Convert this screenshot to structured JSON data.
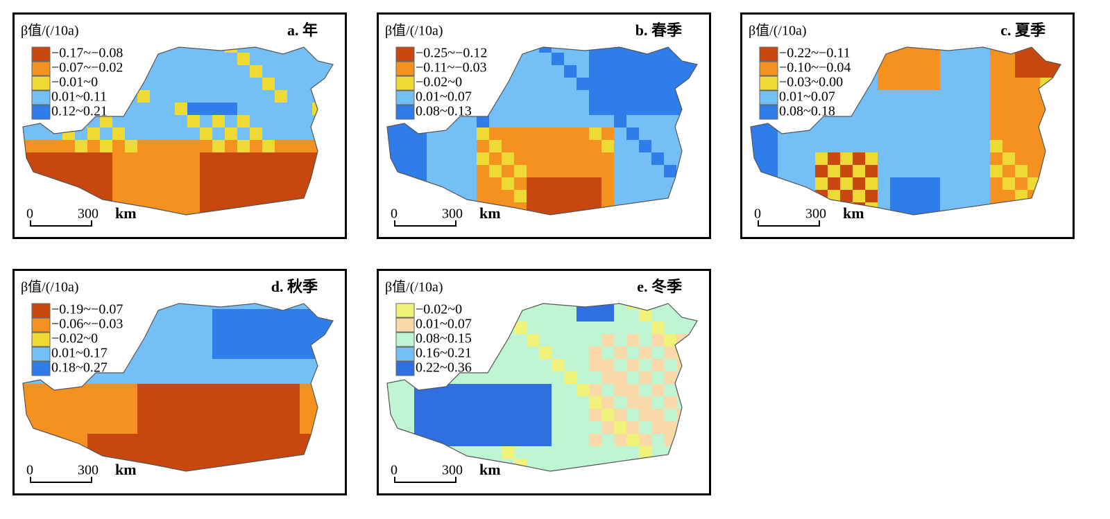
{
  "panels": [
    {
      "title": "a. 年",
      "legend_title": "β值/(/10a)",
      "legend": [
        {
          "label": "−0.17~−0.08",
          "color": "#c8470e"
        },
        {
          "label": "−0.07~−0.02",
          "color": "#f5911e"
        },
        {
          "label": "−0.01~0",
          "color": "#efda35"
        },
        {
          "label": "0.01~0.11",
          "color": "#74bff5"
        },
        {
          "label": "0.12~0.21",
          "color": "#2f7de8"
        }
      ],
      "scale": {
        "start": "0",
        "end": "300",
        "unit": "km"
      }
    },
    {
      "title": "b. 春季",
      "legend_title": "β值/(/10a)",
      "legend": [
        {
          "label": "−0.25~−0.12",
          "color": "#c8470e"
        },
        {
          "label": "−0.11~−0.03",
          "color": "#f5911e"
        },
        {
          "label": "−0.02~0",
          "color": "#efda35"
        },
        {
          "label": "0.01~0.07",
          "color": "#74bff5"
        },
        {
          "label": "0.08~0.13",
          "color": "#2f7de8"
        }
      ],
      "scale": {
        "start": "0",
        "end": "300",
        "unit": "km"
      }
    },
    {
      "title": "c. 夏季",
      "legend_title": "β值/(/10a)",
      "legend": [
        {
          "label": "−0.22~−0.11",
          "color": "#c8470e"
        },
        {
          "label": "−0.10~−0.04",
          "color": "#f5911e"
        },
        {
          "label": "−0.03~0.00",
          "color": "#efda35"
        },
        {
          "label": "0.01~0.07",
          "color": "#74bff5"
        },
        {
          "label": "0.08~0.18",
          "color": "#2f7de8"
        }
      ],
      "scale": {
        "start": "0",
        "end": "300",
        "unit": "km"
      }
    },
    {
      "title": "d. 秋季",
      "legend_title": "β值/(/10a)",
      "legend": [
        {
          "label": "−0.19~−0.07",
          "color": "#c8470e"
        },
        {
          "label": "−0.06~−0.03",
          "color": "#f5911e"
        },
        {
          "label": "−0.02~0",
          "color": "#efda35"
        },
        {
          "label": "0.01~0.17",
          "color": "#74bff5"
        },
        {
          "label": "0.18~0.27",
          "color": "#2f7de8"
        }
      ],
      "scale": {
        "start": "0",
        "end": "300",
        "unit": "km"
      }
    },
    {
      "title": "e. 冬季",
      "legend_title": "β值/(/10a)",
      "legend": [
        {
          "label": "−0.02~0",
          "color": "#f0f27a"
        },
        {
          "label": "0.01~0.07",
          "color": "#fad9a8"
        },
        {
          "label": "0.08~0.15",
          "color": "#bff5d2"
        },
        {
          "label": "0.16~0.21",
          "color": "#74bff5"
        },
        {
          "label": "0.22~0.36",
          "color": "#2f6fe0"
        }
      ],
      "scale": {
        "start": "0",
        "end": "300",
        "unit": "km"
      }
    }
  ]
}
